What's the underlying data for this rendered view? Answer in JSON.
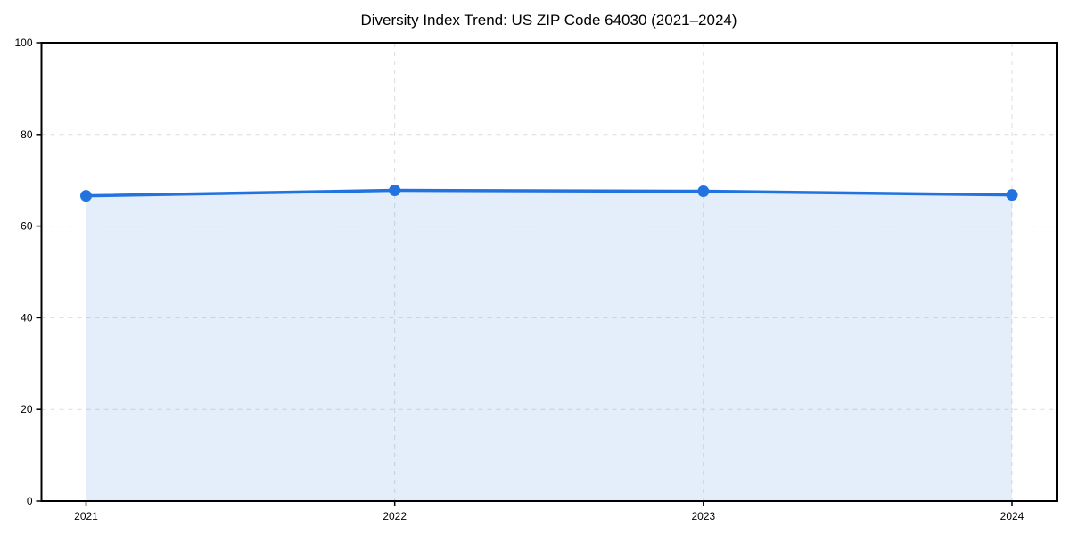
{
  "chart_data": {
    "type": "line",
    "title": "Diversity Index Trend: US ZIP Code 64030 (2021–2024)",
    "categories": [
      "2021",
      "2022",
      "2023",
      "2024"
    ],
    "series": [
      {
        "name": "Diversity Index",
        "values": [
          66.6,
          67.8,
          67.6,
          66.8
        ]
      }
    ],
    "xlabel": "",
    "ylabel": "",
    "ylim": [
      0,
      100
    ],
    "yticks": [
      0,
      20,
      40,
      60,
      80,
      100
    ],
    "grid": true,
    "grid_style": "dashed",
    "legend_position": "none",
    "area_fill": true,
    "markers": true,
    "colors": {
      "line": "#2273e0",
      "marker": "#2273e0",
      "area_fill_hex": "#e7effc",
      "area_fill_rgba": "rgba(34,115,224,0.12)",
      "grid": "#dcdcdc",
      "spine": "#000000",
      "text": "#000000",
      "background": "#ffffff"
    }
  }
}
